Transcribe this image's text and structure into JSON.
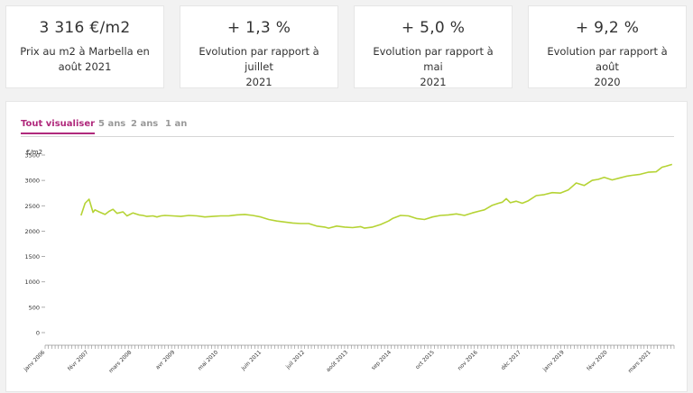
{
  "stats": [
    {
      "value": "3 316 €/m2",
      "label_line1": "Prix au m2 à Marbella en",
      "label_line2": "août 2021"
    },
    {
      "value": "+ 1,3 %",
      "label_line1": "Evolution par rapport à juillet",
      "label_line2": "2021"
    },
    {
      "value": "+ 5,0 %",
      "label_line1": "Evolution par rapport à mai",
      "label_line2": "2021"
    },
    {
      "value": "+ 9,2 %",
      "label_line1": "Evolution par rapport à août",
      "label_line2": "2020"
    }
  ],
  "tabs": [
    "Tout visualiser",
    "5 ans",
    "2 ans",
    "1 an"
  ],
  "colors": {
    "accent": "#b0297c",
    "line": "#b5d334"
  },
  "chart_data": {
    "type": "line",
    "title": "",
    "ylabel": "€/m2",
    "xlabel": "",
    "ylim": [
      0,
      3500
    ],
    "yticks": [
      0,
      500,
      1000,
      1500,
      2000,
      2500,
      3000,
      3500
    ],
    "xlim": [
      2006.0,
      2021.75
    ],
    "xtick_labels": [
      "janv 2006",
      "févr 2007",
      "mars 2008",
      "avr 2009",
      "mai 2010",
      "juin 2011",
      "juil 2012",
      "août 2013",
      "sep 2014",
      "oct 2015",
      "nov 2016",
      "déc 2017",
      "janv 2019",
      "févr 2020",
      "mars 2021"
    ],
    "xtick_positions": [
      2006.0,
      2007.083,
      2008.167,
      2009.25,
      2010.333,
      2011.417,
      2012.5,
      2013.583,
      2014.667,
      2015.75,
      2016.833,
      2017.917,
      2019.0,
      2020.083,
      2021.167
    ],
    "series": [
      {
        "name": "Prix au m2",
        "x": [
          2006.9,
          2007.0,
          2007.1,
          2007.2,
          2007.25,
          2007.35,
          2007.5,
          2007.6,
          2007.7,
          2007.8,
          2007.95,
          2008.05,
          2008.2,
          2008.35,
          2008.45,
          2008.55,
          2008.7,
          2008.8,
          2008.9,
          2009.0,
          2009.2,
          2009.4,
          2009.6,
          2009.8,
          2010.0,
          2010.2,
          2010.4,
          2010.6,
          2010.8,
          2011.0,
          2011.2,
          2011.4,
          2011.6,
          2011.8,
          2012.0,
          2012.2,
          2012.4,
          2012.6,
          2012.8,
          2013.0,
          2013.1,
          2013.3,
          2013.5,
          2013.7,
          2013.9,
          2014.0,
          2014.2,
          2014.4,
          2014.6,
          2014.7,
          2014.9,
          2015.1,
          2015.3,
          2015.5,
          2015.7,
          2015.9,
          2016.1,
          2016.3,
          2016.5,
          2016.7,
          2016.9,
          2017.0,
          2017.2,
          2017.35,
          2017.45,
          2017.55,
          2017.65,
          2017.8,
          2017.95,
          2018.1,
          2018.3,
          2018.5,
          2018.7,
          2018.9,
          2019.1,
          2019.3,
          2019.5,
          2019.7,
          2019.85,
          2020.0,
          2020.2,
          2020.4,
          2020.55,
          2020.7,
          2020.9,
          2021.1,
          2021.3,
          2021.45,
          2021.55,
          2021.7
        ],
        "values": [
          2310,
          2550,
          2630,
          2370,
          2420,
          2380,
          2330,
          2390,
          2430,
          2350,
          2380,
          2300,
          2360,
          2320,
          2310,
          2290,
          2300,
          2280,
          2300,
          2310,
          2300,
          2290,
          2310,
          2300,
          2280,
          2290,
          2300,
          2300,
          2320,
          2330,
          2310,
          2280,
          2230,
          2200,
          2180,
          2160,
          2150,
          2150,
          2100,
          2080,
          2060,
          2100,
          2080,
          2070,
          2090,
          2060,
          2080,
          2130,
          2200,
          2250,
          2310,
          2300,
          2250,
          2230,
          2280,
          2310,
          2320,
          2340,
          2310,
          2360,
          2400,
          2420,
          2510,
          2550,
          2570,
          2640,
          2560,
          2590,
          2550,
          2600,
          2700,
          2720,
          2760,
          2750,
          2810,
          2950,
          2900,
          3000,
          3020,
          3060,
          3010,
          3050,
          3080,
          3100,
          3120,
          3160,
          3170,
          3260,
          3280,
          3316
        ]
      }
    ]
  }
}
